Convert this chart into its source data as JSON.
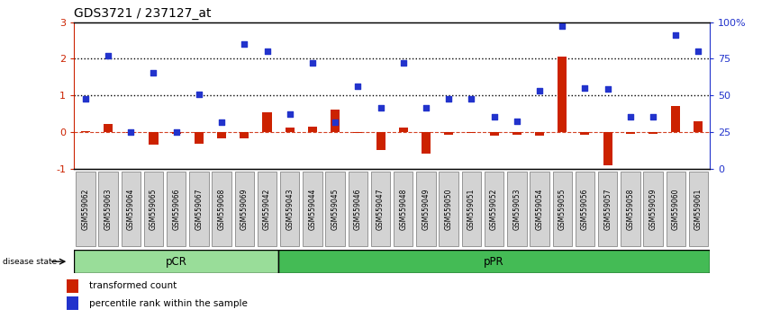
{
  "title": "GDS3721 / 237127_at",
  "samples": [
    "GSM559062",
    "GSM559063",
    "GSM559064",
    "GSM559065",
    "GSM559066",
    "GSM559067",
    "GSM559068",
    "GSM559069",
    "GSM559042",
    "GSM559043",
    "GSM559044",
    "GSM559045",
    "GSM559046",
    "GSM559047",
    "GSM559048",
    "GSM559049",
    "GSM559050",
    "GSM559051",
    "GSM559052",
    "GSM559053",
    "GSM559054",
    "GSM559055",
    "GSM559056",
    "GSM559057",
    "GSM559058",
    "GSM559059",
    "GSM559060",
    "GSM559061"
  ],
  "transformed_count": [
    0.02,
    0.22,
    -0.02,
    -0.35,
    -0.05,
    -0.32,
    -0.18,
    -0.18,
    0.55,
    0.12,
    0.15,
    0.6,
    -0.02,
    -0.5,
    0.12,
    -0.6,
    -0.08,
    -0.02,
    -0.1,
    -0.08,
    -0.1,
    2.05,
    -0.08,
    -0.9,
    -0.05,
    -0.05,
    0.7,
    0.3
  ],
  "percentile_rank": [
    0.9,
    2.08,
    0.0,
    1.63,
    0.0,
    1.02,
    0.27,
    2.4,
    2.22,
    0.5,
    1.9,
    0.27,
    1.25,
    0.65,
    1.9,
    0.65,
    0.9,
    0.9,
    0.42,
    0.3,
    1.12,
    2.9,
    1.2,
    1.18,
    0.42,
    0.42,
    2.65,
    2.2
  ],
  "pcr_count": 9,
  "ppr_count": 19,
  "ylim_left": [
    -1,
    3
  ],
  "ylim_right": [
    0,
    100
  ],
  "bar_color": "#cc2200",
  "scatter_color": "#2233cc",
  "pcr_color": "#99dd99",
  "ppr_color": "#44bb55",
  "bg_color": "#ffffff",
  "title_fontsize": 10,
  "ytick_left_color": "#cc2200",
  "ytick_right_color": "#2233cc"
}
